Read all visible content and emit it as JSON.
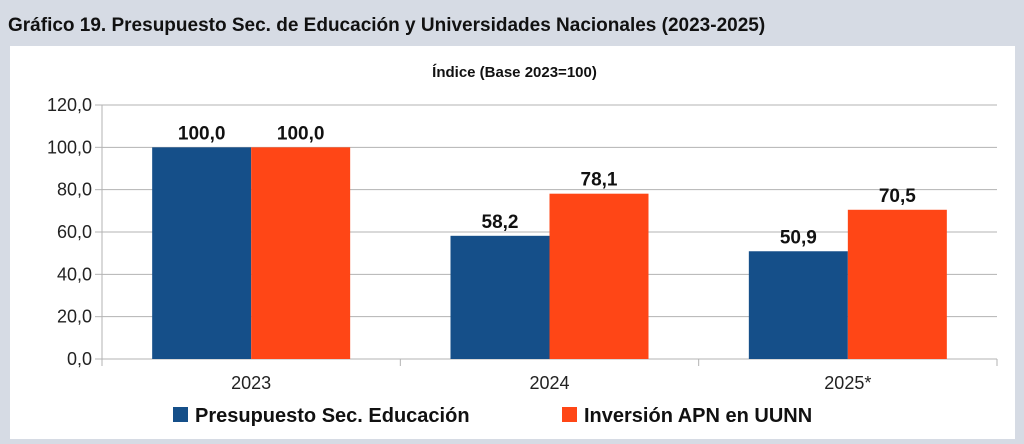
{
  "header": {
    "title": "Gráfico 19. Presupuesto Sec. de Educación y Universidades Nacionales (2023-2025)"
  },
  "chart_data": {
    "type": "bar",
    "title": "Índice (Base 2023=100)",
    "categories": [
      "2023",
      "2024",
      "2025*"
    ],
    "series": [
      {
        "name": "Presupuesto Sec. Educación",
        "color": "#154f89",
        "values": [
          100.0,
          58.2,
          50.9
        ],
        "labels": [
          "100,0",
          "58,2",
          "50,9"
        ]
      },
      {
        "name": "Inversión APN en UUNN",
        "color": "#ff4616",
        "values": [
          100.0,
          78.1,
          70.5
        ],
        "labels": [
          "100,0",
          "78,1",
          "70,5"
        ]
      }
    ],
    "ylim": [
      0,
      120
    ],
    "yticks": [
      0,
      20,
      40,
      60,
      80,
      100,
      120
    ],
    "ytick_labels": [
      "0,0",
      "20,0",
      "40,0",
      "60,0",
      "80,0",
      "100,0",
      "120,0"
    ],
    "grid": true,
    "legend_position": "bottom",
    "xlabel": "",
    "ylabel": ""
  }
}
